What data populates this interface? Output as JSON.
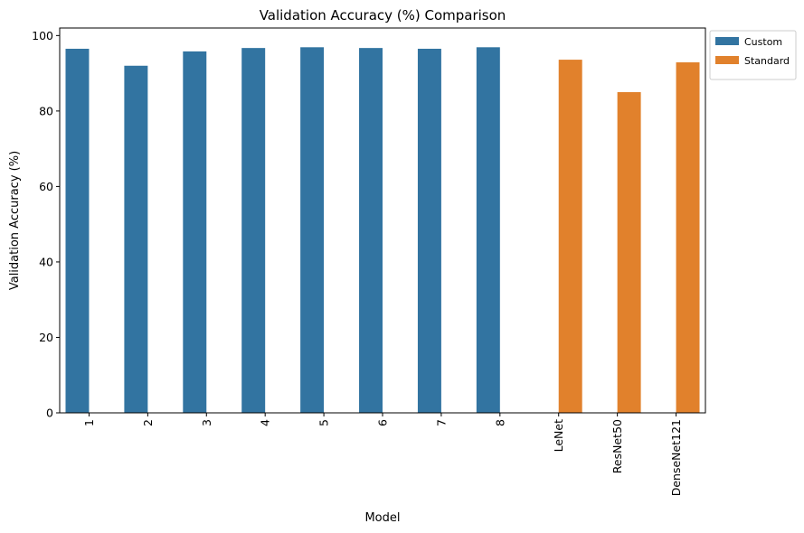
{
  "chart_data": {
    "type": "bar",
    "title": "Validation Accuracy (%) Comparison",
    "xlabel": "Model",
    "ylabel": "Validation Accuracy (%)",
    "categories": [
      "1",
      "2",
      "3",
      "4",
      "5",
      "6",
      "7",
      "8",
      "LeNet",
      "ResNet50",
      "DenseNet121"
    ],
    "ylim": [
      0,
      102
    ],
    "yticks": [
      0,
      20,
      40,
      60,
      80,
      100
    ],
    "grid": false,
    "legend_position": "outside-top-right",
    "series": [
      {
        "name": "Custom",
        "color": "#3274a1",
        "values": [
          96.5,
          92.0,
          95.8,
          96.7,
          96.9,
          96.7,
          96.5,
          96.9,
          null,
          null,
          null
        ]
      },
      {
        "name": "Standard",
        "color": "#e1812c",
        "values": [
          null,
          null,
          null,
          null,
          null,
          null,
          null,
          null,
          93.6,
          85.0,
          92.9
        ]
      }
    ]
  }
}
